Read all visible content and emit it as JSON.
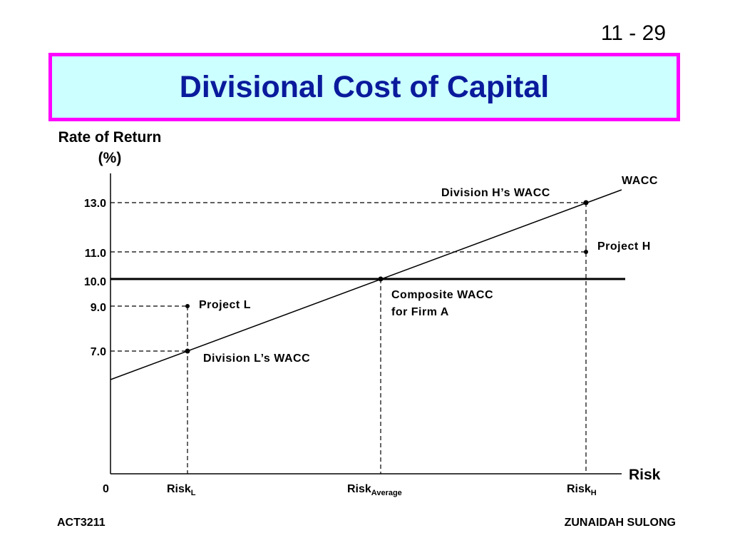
{
  "slide": {
    "number": "11 - 29",
    "title": "Divisional Cost of Capital",
    "footer_left": "ACT3211",
    "footer_right": "ZUNAIDAH SULONG"
  },
  "chart_data": {
    "type": "line",
    "ylabel": [
      "Rate of Return",
      "(%)"
    ],
    "xlabel": "Risk",
    "origin_label": "0",
    "y_ticks": [
      "13.0",
      "11.0",
      "10.0",
      "9.0",
      "7.0"
    ],
    "x_ticks": [
      {
        "base": "Risk",
        "sub": "L"
      },
      {
        "base": "Risk",
        "sub": "Average"
      },
      {
        "base": "Risk",
        "sub": "H"
      }
    ],
    "series": [
      {
        "name": "WACC",
        "points": [
          [
            "Risk_L",
            7.0
          ],
          [
            "Risk_Average",
            10.0
          ],
          [
            "Risk_H",
            13.0
          ]
        ]
      }
    ],
    "composite_wacc": 10.0,
    "projects": [
      {
        "x": "Risk_L",
        "y": 9.0
      },
      {
        "x": "Risk_H",
        "y": 11.0
      }
    ],
    "annotations": {
      "wacc_line": "WACC",
      "division_h": "Division H’s WACC",
      "project_h": "Project H",
      "composite": [
        "Composite WACC",
        "for Firm A"
      ],
      "project_l": "Project L",
      "division_l": "Division L’s WACC"
    }
  }
}
